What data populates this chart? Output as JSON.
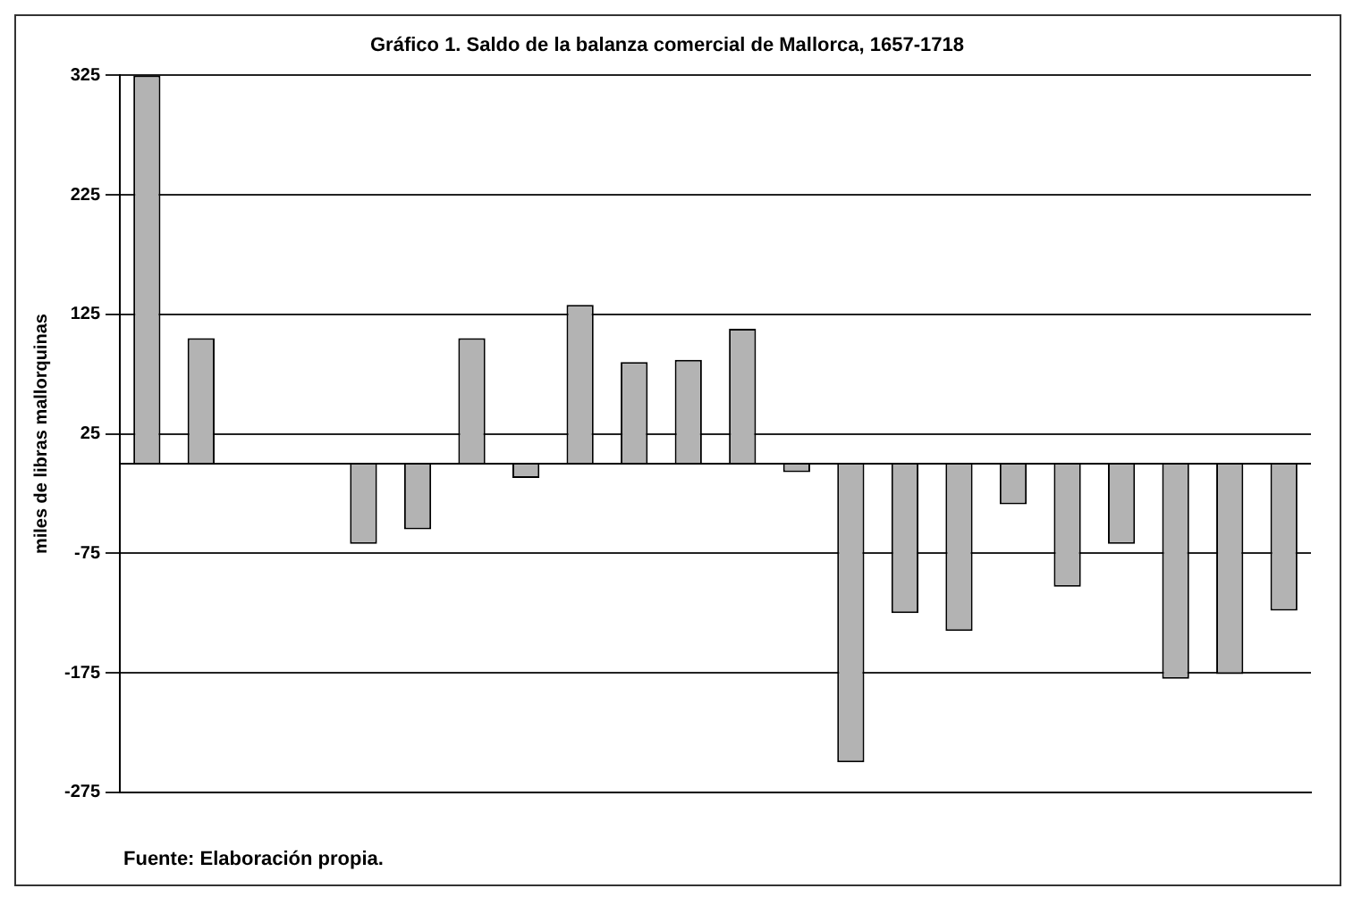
{
  "chart_data": {
    "type": "bar",
    "title": "Gráfico 1. Saldo de la balanza comercial de Mallorca, 1657-1718",
    "ylabel": "miles de libras mallorquinas",
    "categories": [
      null,
      null,
      null,
      null,
      null,
      null,
      null,
      null,
      null,
      null,
      null,
      null,
      null,
      null,
      null,
      null,
      null,
      null,
      null,
      null,
      null,
      null
    ],
    "values": [
      325,
      105,
      null,
      null,
      -67,
      -55,
      105,
      -12,
      133,
      85,
      87,
      113,
      -7,
      -250,
      -125,
      -140,
      -34,
      -103,
      -67,
      -180,
      -176,
      -123
    ],
    "color": "#b3b3b3",
    "ylim": [
      -275,
      325
    ],
    "yticks": [
      -275,
      -175,
      -75,
      25,
      125,
      225,
      325
    ],
    "grid": "y",
    "annotations": [
      "Fuente: Elaboración propia."
    ]
  }
}
